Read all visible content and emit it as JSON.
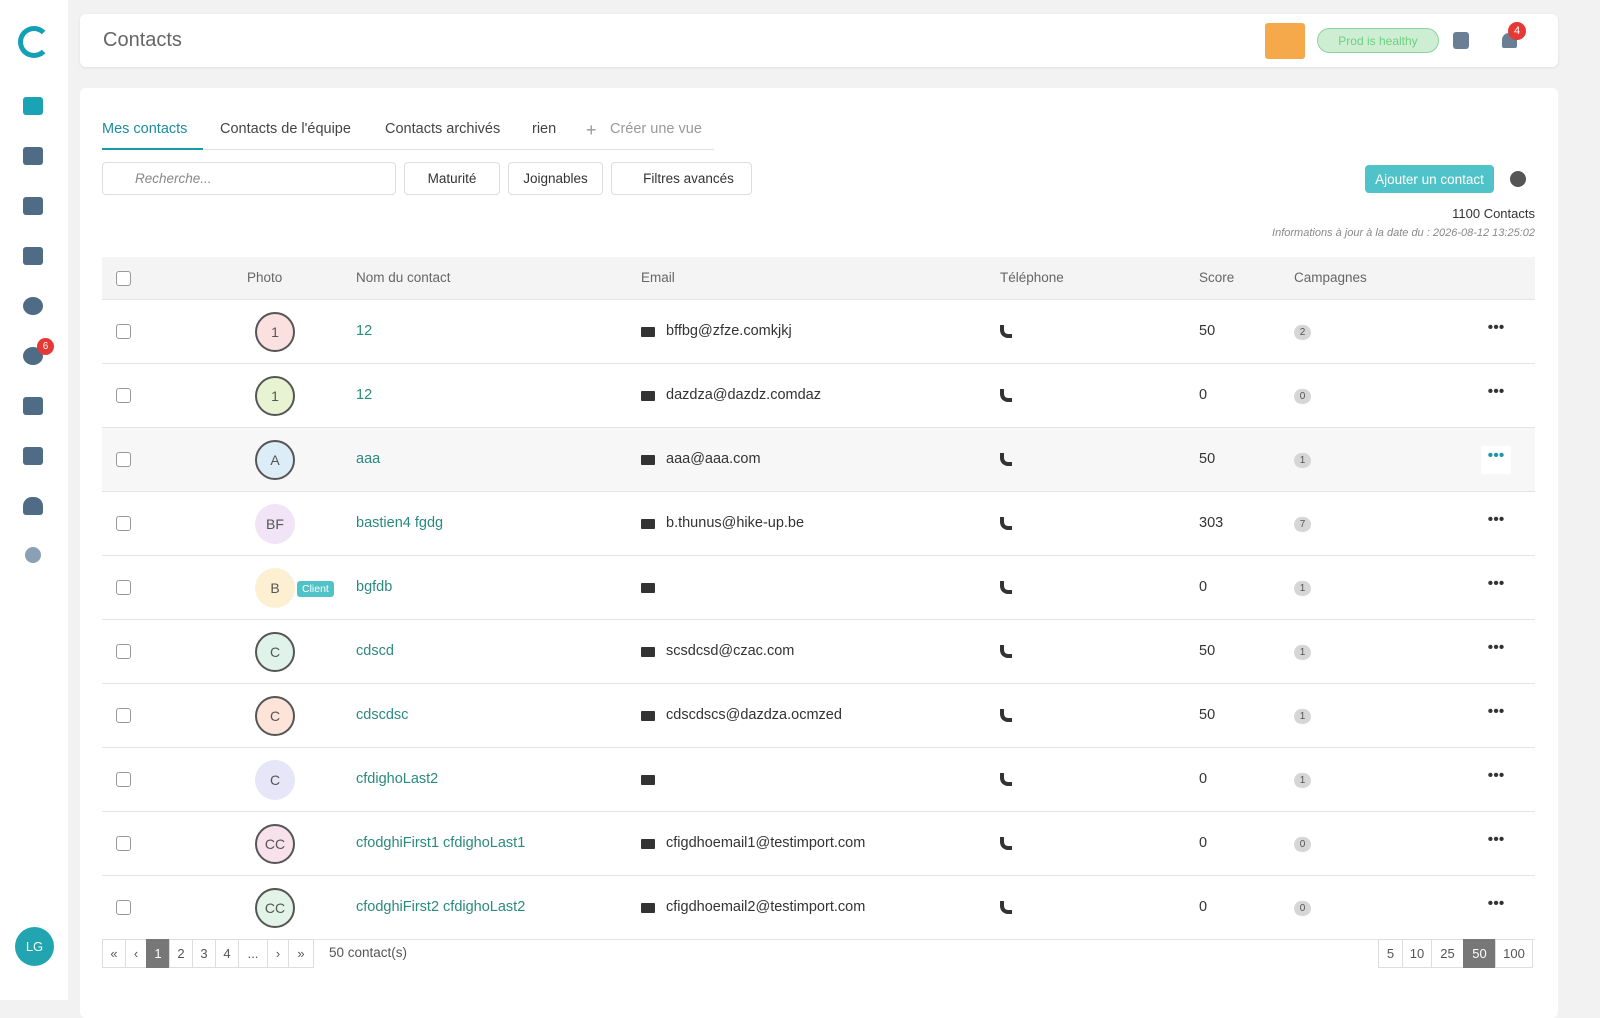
{
  "header": {
    "title": "Contacts",
    "status": "Prod is healthy",
    "notifications": "4"
  },
  "sidebar": {
    "badge": "6",
    "user": "LG"
  },
  "tabs": [
    "Mes contacts",
    "Contacts de l'équipe",
    "Contacts archivés",
    "rien",
    "Créer une vue"
  ],
  "toolbar": {
    "search_placeholder": "Recherche...",
    "filters": [
      "Maturité",
      "Joignables",
      "Filtres avancés"
    ],
    "add_button": "Ajouter un contact"
  },
  "summary": {
    "count": "1100 Contacts",
    "updated": "Informations à jour à la date du : 2026-08-12 13:25:02"
  },
  "table": {
    "columns": [
      "Photo",
      "Nom du contact",
      "Email",
      "Téléphone",
      "Score",
      "Campagnes"
    ],
    "rows": [
      {
        "initials": "1",
        "color": "#fbe0e0",
        "name": "12",
        "email": "bffbg@zfze.comkjkj",
        "score": 50,
        "campaigns": 2
      },
      {
        "initials": "1",
        "color": "#e8f3d2",
        "name": "12",
        "email": "dazdza@dazdz.comdaz",
        "score": 0,
        "campaigns": 0
      },
      {
        "initials": "A",
        "color": "#dcedf8",
        "name": "aaa",
        "email": "aaa@aaa.com",
        "score": 50,
        "campaigns": 1
      },
      {
        "initials": "BF",
        "color": "#f1e4f7",
        "name": "bastien4 fgdg",
        "email": "b.thunus@hike-up.be",
        "score": 303,
        "campaigns": 7
      },
      {
        "initials": "B",
        "color": "#fdf0d2",
        "tag": "Client",
        "name": "bgfdb",
        "score": 0,
        "campaigns": 1
      },
      {
        "initials": "C",
        "color": "#dff3ea",
        "name": "cdscd",
        "email": "scsdcsd@czac.com",
        "score": 50,
        "campaigns": 1
      },
      {
        "initials": "C",
        "color": "#fde3d8",
        "name": "cdscdsc",
        "email": "cdscdscs@dazdza.ocmzed",
        "score": 50,
        "campaigns": 1
      },
      {
        "initials": "C",
        "color": "#e6e6f8",
        "name": "cfdighoLast2",
        "score": 0,
        "campaigns": 1
      },
      {
        "initials": "CC",
        "color": "#f7e1ea",
        "name": "cfodghiFirst1 cfdighoLast1",
        "email": "cfigdhoemail1@testimport.com",
        "score": 0,
        "campaigns": 0
      },
      {
        "initials": "CC",
        "color": "#e2f3e8",
        "name": "cfodghiFirst2 cfdighoLast2",
        "email": "cfigdhoemail2@testimport.com",
        "score": 0,
        "campaigns": 0
      }
    ]
  },
  "pagination": {
    "pages": [
      "«",
      "‹",
      "1",
      "2",
      "3",
      "4",
      "...",
      "›",
      "»"
    ],
    "total": "50 contact(s)",
    "page_sizes": [
      5,
      10,
      25,
      50,
      100
    ]
  }
}
